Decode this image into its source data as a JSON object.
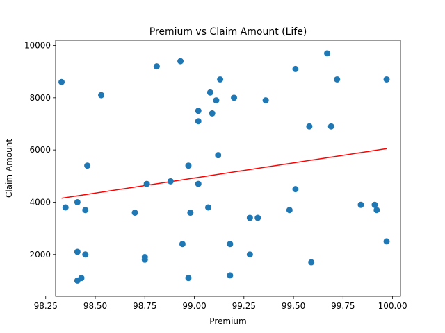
{
  "chart_data": {
    "type": "scatter",
    "title": "Premium vs Claim Amount (Life)",
    "xlabel": "Premium",
    "ylabel": "Claim Amount",
    "xlim": [
      98.3,
      100.04
    ],
    "ylim": [
      400,
      10200
    ],
    "xticks": [
      98.25,
      98.5,
      98.75,
      99.0,
      99.25,
      99.5,
      99.75,
      100.0
    ],
    "xtick_labels": [
      "98.25",
      "98.50",
      "98.75",
      "99.00",
      "99.25",
      "99.50",
      "99.75",
      "100.00"
    ],
    "yticks": [
      2000,
      4000,
      6000,
      8000,
      10000
    ],
    "ytick_labels": [
      "2000",
      "4000",
      "6000",
      "8000",
      "10000"
    ],
    "point_color": "#1f77b4",
    "line_color": "#ff0000",
    "points": [
      {
        "x": 98.33,
        "y": 8600
      },
      {
        "x": 98.35,
        "y": 3800
      },
      {
        "x": 98.41,
        "y": 4000
      },
      {
        "x": 98.41,
        "y": 2100
      },
      {
        "x": 98.41,
        "y": 1000
      },
      {
        "x": 98.43,
        "y": 1100
      },
      {
        "x": 98.45,
        "y": 3700
      },
      {
        "x": 98.45,
        "y": 2000
      },
      {
        "x": 98.46,
        "y": 5400
      },
      {
        "x": 98.53,
        "y": 8100
      },
      {
        "x": 98.7,
        "y": 3600
      },
      {
        "x": 98.75,
        "y": 1900
      },
      {
        "x": 98.75,
        "y": 1800
      },
      {
        "x": 98.76,
        "y": 4700
      },
      {
        "x": 98.81,
        "y": 9200
      },
      {
        "x": 98.88,
        "y": 4800
      },
      {
        "x": 98.93,
        "y": 9400
      },
      {
        "x": 98.94,
        "y": 2400
      },
      {
        "x": 98.97,
        "y": 5400
      },
      {
        "x": 98.97,
        "y": 1100
      },
      {
        "x": 98.98,
        "y": 3600
      },
      {
        "x": 99.02,
        "y": 7500
      },
      {
        "x": 99.02,
        "y": 7100
      },
      {
        "x": 99.02,
        "y": 4700
      },
      {
        "x": 99.07,
        "y": 3800
      },
      {
        "x": 99.08,
        "y": 8200
      },
      {
        "x": 99.09,
        "y": 7400
      },
      {
        "x": 99.11,
        "y": 7900
      },
      {
        "x": 99.12,
        "y": 5800
      },
      {
        "x": 99.13,
        "y": 8700
      },
      {
        "x": 99.18,
        "y": 2400
      },
      {
        "x": 99.18,
        "y": 1200
      },
      {
        "x": 99.2,
        "y": 8000
      },
      {
        "x": 99.28,
        "y": 3400
      },
      {
        "x": 99.28,
        "y": 2000
      },
      {
        "x": 99.32,
        "y": 3400
      },
      {
        "x": 99.36,
        "y": 7900
      },
      {
        "x": 99.48,
        "y": 3700
      },
      {
        "x": 99.51,
        "y": 9100
      },
      {
        "x": 99.51,
        "y": 4500
      },
      {
        "x": 99.58,
        "y": 6900
      },
      {
        "x": 99.59,
        "y": 1700
      },
      {
        "x": 99.67,
        "y": 9700
      },
      {
        "x": 99.69,
        "y": 6900
      },
      {
        "x": 99.72,
        "y": 8700
      },
      {
        "x": 99.84,
        "y": 3900
      },
      {
        "x": 99.91,
        "y": 3900
      },
      {
        "x": 99.92,
        "y": 3700
      },
      {
        "x": 99.97,
        "y": 8700
      },
      {
        "x": 99.97,
        "y": 2500
      }
    ],
    "fit_line": [
      {
        "x": 98.33,
        "y": 4150
      },
      {
        "x": 99.97,
        "y": 6050
      }
    ]
  }
}
